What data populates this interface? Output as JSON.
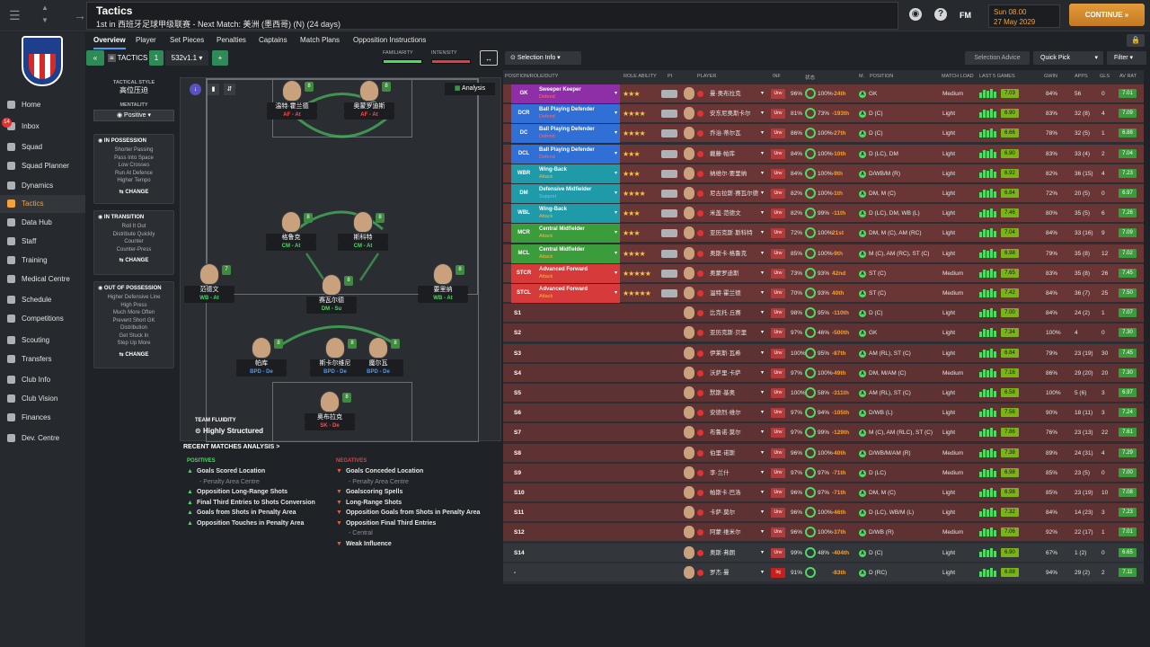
{
  "header": {
    "title": "Tactics",
    "subtitle": "1st in 西班牙足球甲级联赛 - Next Match: 美洲 (墨西哥) (N) (24 days)",
    "club_abbr": "FM",
    "date_time": "Sun 08.00",
    "date": "27 May 2029",
    "continue_label": "CONTINUE"
  },
  "sidebar": [
    {
      "label": "Home"
    },
    {
      "label": "Inbox",
      "badge": "14"
    },
    {
      "label": "Squad"
    },
    {
      "label": "Squad Planner"
    },
    {
      "label": "Dynamics"
    },
    {
      "label": "Tactics"
    },
    {
      "label": "Data Hub"
    },
    {
      "label": "Staff"
    },
    {
      "label": "Training"
    },
    {
      "label": "Medical Centre"
    },
    {
      "label": "Schedule"
    },
    {
      "label": "Competitions"
    },
    {
      "label": "Scouting"
    },
    {
      "label": "Transfers"
    },
    {
      "label": "Club Info"
    },
    {
      "label": "Club Vision"
    },
    {
      "label": "Finances"
    },
    {
      "label": "Dev. Centre"
    }
  ],
  "tabs": [
    "Overview",
    "Player",
    "Set Pieces",
    "Penalties",
    "Captains",
    "Match Plans",
    "Opposition Instructions"
  ],
  "toolbar": {
    "tactics_label": "TACTICS",
    "tactic_num": "1",
    "formation": "532v1.1",
    "familiarity_label": "FAMILIARITY",
    "intensity_label": "INTENSITY",
    "selection_info": "Selection Info",
    "selection_advice": "Selection Advice",
    "quick_pick": "Quick Pick",
    "filter": "Filter",
    "analysis": "Analysis"
  },
  "style": {
    "label": "TACTICAL STYLE",
    "value": "高位压迫",
    "mentality_label": "MENTALITY",
    "mentality": "Positive"
  },
  "in_possession": {
    "title": "IN POSSESSION",
    "items": [
      "Shorter Passing",
      "Pass Into Space",
      "Low Crosses",
      "Run At Defence",
      "Higher Tempo"
    ],
    "change": "CHANGE"
  },
  "in_transition": {
    "title": "IN TRANSITION",
    "items": [
      "Roll It Out",
      "Distribute Quickly",
      "Counter",
      "Counter-Press"
    ],
    "change": "CHANGE"
  },
  "out_possession": {
    "title": "OUT OF POSSESSION",
    "items": [
      "Higher Defensive Line",
      "High Press",
      "Much More Often",
      "Prevent Short GK",
      "Distribution",
      "Get Stuck In",
      "Step Up More"
    ],
    "change": "CHANGE"
  },
  "pitch_players": [
    {
      "name": "温特·霍兰德",
      "role": "AF - At",
      "grade": "8"
    },
    {
      "name": "奥蒙罗迪斯",
      "role": "AF - At",
      "grade": "8"
    },
    {
      "name": "格鲁克",
      "role": "CM - At",
      "grade": "8"
    },
    {
      "name": "斯科特",
      "role": "CM - At",
      "grade": "8"
    },
    {
      "name": "范德文",
      "role": "WB - At",
      "grade": "7"
    },
    {
      "name": "赛瓦尔德",
      "role": "DM - Su",
      "grade": "8"
    },
    {
      "name": "要里纳",
      "role": "WB - At",
      "grade": "8"
    },
    {
      "name": "帕库",
      "role": "BPD - De",
      "grade": "8"
    },
    {
      "name": "斯卡尔维尼",
      "role": "BPD - De",
      "grade": "8"
    },
    {
      "name": "魔尔瓦",
      "role": "BPD - De",
      "grade": "8"
    },
    {
      "name": "奥布拉克",
      "role": "SK - De",
      "grade": "8"
    }
  ],
  "fluidity": {
    "label": "TEAM FLUIDITY",
    "value": "Highly Structured"
  },
  "recent": {
    "title": "RECENT MATCHES ANALYSIS >",
    "pos_title": "POSITIVES",
    "neg_title": "NEGATIVES",
    "positives": [
      "Goals Scored Location",
      "- Penalty Area Centre",
      "Opposition Long-Range Shots",
      "Final Third Entries to Shots Conversion",
      "Goals from Shots in Penalty Area",
      "Opposition Touches in Penalty Area"
    ],
    "negatives": [
      "Goals Conceded Location",
      "- Penalty Area Centre",
      "Goalscoring Spells",
      "Long-Range Shots",
      "Opposition Goals from Shots in Penalty Area",
      "Opposition Final Third Entries",
      "- Central",
      "Weak Influence"
    ]
  },
  "table_headers": [
    "POSITION/ROLE/DUTY",
    "ROLE ABILITY",
    "PI",
    "PLAYER",
    "INF",
    "状态",
    "M.",
    "POSITION",
    "MATCH LOAD",
    "LAST 5 GAMES",
    "GWIN",
    "APPS",
    "GLS",
    "AV RAT"
  ],
  "rows": [
    {
      "pos": "GK",
      "role": "Sweeper Keeper",
      "duty": "Defend",
      "stars": "★★★",
      "name": "曼·奥布拉克",
      "cond": "96%",
      "sharp": "100%",
      "diff": "-24th",
      "position": "GK",
      "load": "Medium",
      "rating": "7.03",
      "gwin": "84%",
      "apps": "56",
      "gls": "0",
      "av": "7.01",
      "color": "#8e2fa8"
    },
    {
      "pos": "DCR",
      "role": "Ball Playing Defender",
      "duty": "Defend",
      "stars": "★★★★",
      "name": "安东尼奥斯卡尔",
      "cond": "81%",
      "sharp": "73%",
      "diff": "-193th",
      "position": "D (C)",
      "load": "Light",
      "rating": "6.90",
      "gwin": "83%",
      "apps": "32 (8)",
      "gls": "4",
      "av": "7.09",
      "color": "#2f6fd6"
    },
    {
      "pos": "DC",
      "role": "Ball Playing Defender",
      "duty": "Defend",
      "stars": "★★★★",
      "name": "乔治·蒂尔瓦",
      "cond": "86%",
      "sharp": "100%",
      "diff": "-27th",
      "position": "D (C)",
      "load": "Light",
      "rating": "6.66",
      "gwin": "78%",
      "apps": "32 (5)",
      "gls": "1",
      "av": "6.88",
      "color": "#2f6fd6"
    },
    {
      "pos": "DCL",
      "role": "Ball Playing Defender",
      "duty": "Defend",
      "stars": "★★★",
      "name": "戴藤·帕库",
      "cond": "84%",
      "sharp": "100%",
      "diff": "-10th",
      "position": "D (LC), DM",
      "load": "Light",
      "rating": "6.90",
      "gwin": "83%",
      "apps": "33 (4)",
      "gls": "2",
      "av": "7.04",
      "color": "#2f6fd6"
    },
    {
      "pos": "WBR",
      "role": "Wing-Back",
      "duty": "Attack",
      "stars": "★★★",
      "name": "纳维尔·要里纳",
      "cond": "84%",
      "sharp": "100%",
      "diff": "-9th",
      "position": "D/WB/M (R)",
      "load": "Light",
      "rating": "6.92",
      "gwin": "82%",
      "apps": "36 (15)",
      "gls": "4",
      "av": "7.23",
      "color": "#1e9aa8"
    },
    {
      "pos": "DM",
      "role": "Defensive Midfielder",
      "duty": "Support",
      "stars": "★★★★",
      "name": "尼古拉斯·赛瓦尔德",
      "cond": "82%",
      "sharp": "100%",
      "diff": "-1th",
      "position": "DM, M (C)",
      "load": "Light",
      "rating": "6.84",
      "gwin": "72%",
      "apps": "20 (5)",
      "gls": "0",
      "av": "6.97",
      "color": "#1e9aa8"
    },
    {
      "pos": "WBL",
      "role": "Wing-Back",
      "duty": "Attack",
      "stars": "★★★",
      "name": "米盖·范德文",
      "cond": "82%",
      "sharp": "99%",
      "diff": "-11th",
      "position": "D (LC), DM, WB (L)",
      "load": "Light",
      "rating": "7.46",
      "gwin": "80%",
      "apps": "35 (5)",
      "gls": "6",
      "av": "7.26",
      "color": "#1e9aa8"
    },
    {
      "pos": "MCR",
      "role": "Central Midfielder",
      "duty": "Attack",
      "stars": "★★★",
      "name": "亚历克斯·斯科特",
      "cond": "72%",
      "sharp": "100%",
      "diff": "21st",
      "position": "DM, M (C), AM (RC)",
      "load": "Light",
      "rating": "7.04",
      "gwin": "84%",
      "apps": "33 (16)",
      "gls": "9",
      "av": "7.09",
      "color": "#3b9c3b"
    },
    {
      "pos": "MCL",
      "role": "Central Midfielder",
      "duty": "Attack",
      "stars": "★★★★",
      "name": "奥斯卡·格鲁克",
      "cond": "85%",
      "sharp": "100%",
      "diff": "-9th",
      "position": "M (C), AM (RC), ST (C)",
      "load": "Light",
      "rating": "6.98",
      "gwin": "79%",
      "apps": "35 (8)",
      "gls": "12",
      "av": "7.02",
      "color": "#3b9c3b"
    },
    {
      "pos": "STCR",
      "role": "Advanced Forward",
      "duty": "Attack",
      "stars": "★★★★★",
      "name": "奥蒙罗迪斯",
      "cond": "73%",
      "sharp": "93%",
      "diff": "42nd",
      "position": "ST (C)",
      "load": "Medium",
      "rating": "7.65",
      "gwin": "83%",
      "apps": "35 (8)",
      "gls": "26",
      "av": "7.45",
      "color": "#d63a3a"
    },
    {
      "pos": "STCL",
      "role": "Advanced Forward",
      "duty": "Attack",
      "stars": "★★★★★",
      "name": "温特·霍兰德",
      "cond": "70%",
      "sharp": "93%",
      "diff": "40th",
      "position": "ST (C)",
      "load": "Medium",
      "rating": "7.42",
      "gwin": "84%",
      "apps": "36 (7)",
      "gls": "25",
      "av": "7.50",
      "color": "#d63a3a"
    },
    {
      "pos": "S1",
      "name": "比克托·丘赛",
      "cond": "98%",
      "sharp": "95%",
      "diff": "-110th",
      "position": "D (C)",
      "load": "Light",
      "rating": "7.00",
      "gwin": "84%",
      "apps": "24 (2)",
      "gls": "1",
      "av": "7.07"
    },
    {
      "pos": "S2",
      "name": "亚历克斯·贝里",
      "cond": "97%",
      "sharp": "46%",
      "diff": "-500th",
      "position": "GK",
      "load": "Light",
      "rating": "7.34",
      "gwin": "100%",
      "apps": "4",
      "gls": "0",
      "av": "7.30"
    },
    {
      "pos": "S3",
      "name": "伊莱斯·瓦希",
      "cond": "100%",
      "sharp": "95%",
      "diff": "-87th",
      "position": "AM (RL), ST (C)",
      "load": "Light",
      "rating": "6.84",
      "gwin": "79%",
      "apps": "23 (19)",
      "gls": "30",
      "av": "7.45"
    },
    {
      "pos": "S4",
      "name": "沃萨里·卡萨",
      "cond": "97%",
      "sharp": "100%",
      "diff": "-49th",
      "position": "DM, M/AM (C)",
      "load": "Medium",
      "rating": "7.16",
      "gwin": "86%",
      "apps": "29 (20)",
      "gls": "20",
      "av": "7.30"
    },
    {
      "pos": "S5",
      "name": "默斯·基奥",
      "cond": "100%",
      "sharp": "58%",
      "diff": "-311th",
      "position": "AM (RL), ST (C)",
      "load": "Light",
      "rating": "6.58",
      "gwin": "100%",
      "apps": "5 (6)",
      "gls": "3",
      "av": "6.97"
    },
    {
      "pos": "S6",
      "name": "安德烈·维尔",
      "cond": "97%",
      "sharp": "94%",
      "diff": "-105th",
      "position": "D/WB (L)",
      "load": "Light",
      "rating": "7.56",
      "gwin": "90%",
      "apps": "18 (11)",
      "gls": "3",
      "av": "7.24"
    },
    {
      "pos": "S7",
      "name": "布鲁诺·莫尔",
      "cond": "97%",
      "sharp": "99%",
      "diff": "-129th",
      "position": "M (C), AM (RLC), ST (C)",
      "load": "Light",
      "rating": "7.86",
      "gwin": "76%",
      "apps": "23 (13)",
      "gls": "22",
      "av": "7.61"
    },
    {
      "pos": "S8",
      "name": "伯里·诺斯",
      "cond": "96%",
      "sharp": "100%",
      "diff": "-40th",
      "position": "D/WB/M/AM (R)",
      "load": "Medium",
      "rating": "7.38",
      "gwin": "89%",
      "apps": "24 (31)",
      "gls": "4",
      "av": "7.29"
    },
    {
      "pos": "S9",
      "name": "李·兰什",
      "cond": "97%",
      "sharp": "97%",
      "diff": "-71th",
      "position": "D (LC)",
      "load": "Medium",
      "rating": "6.98",
      "gwin": "85%",
      "apps": "23 (5)",
      "gls": "0",
      "av": "7.00"
    },
    {
      "pos": "S10",
      "name": "帕斯卡·巴洛",
      "cond": "96%",
      "sharp": "97%",
      "diff": "-71th",
      "position": "DM, M (C)",
      "load": "Light",
      "rating": "6.98",
      "gwin": "85%",
      "apps": "23 (19)",
      "gls": "10",
      "av": "7.08"
    },
    {
      "pos": "S11",
      "name": "卡萨·莫尔",
      "cond": "96%",
      "sharp": "100%",
      "diff": "-46th",
      "position": "D (LC), WB/M (L)",
      "load": "Light",
      "rating": "7.32",
      "gwin": "84%",
      "apps": "14 (23)",
      "gls": "3",
      "av": "7.23"
    },
    {
      "pos": "S12",
      "name": "阿蒙·维米尔",
      "cond": "96%",
      "sharp": "100%",
      "diff": "-37th",
      "position": "D/WB (R)",
      "load": "Medium",
      "rating": "7.06",
      "gwin": "92%",
      "apps": "22 (17)",
      "gls": "1",
      "av": "7.01"
    },
    {
      "pos": "S14",
      "name": "奥斯·弗朗",
      "cond": "99%",
      "sharp": "48%",
      "diff": "-404th",
      "position": "D (C)",
      "load": "Light",
      "rating": "6.90",
      "gwin": "67%",
      "apps": "1 (2)",
      "gls": "0",
      "av": "6.65"
    },
    {
      "pos": "-",
      "name": "罗杰·曼",
      "cond": "91%",
      "sharp": "",
      "diff": "-83th",
      "position": "D (RC)",
      "load": "Light",
      "rating": "6.88",
      "gwin": "94%",
      "apps": "29 (2)",
      "gls": "2",
      "av": "7.11",
      "inj": "Inj"
    }
  ]
}
